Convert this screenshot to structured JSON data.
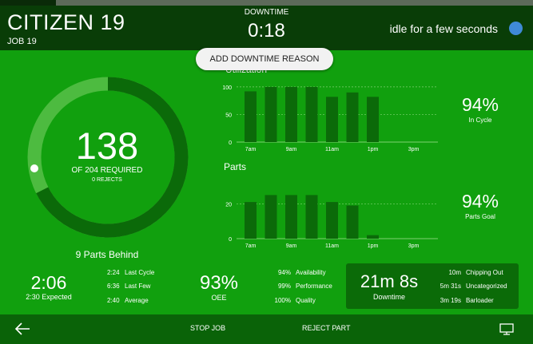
{
  "header": {
    "title": "CITIZEN 19",
    "job": "JOB 19",
    "downtime_label": "DOWNTIME",
    "downtime_value": "0:18",
    "idle_text": "idle for a few seconds",
    "status_dot_color": "#3f8ad6"
  },
  "add_downtime_button": "ADD DOWNTIME REASON",
  "progress": {
    "count": "138",
    "required": "OF 204 REQUIRED",
    "rejects": "0 REJECTS",
    "behind": "9 Parts Behind",
    "fraction": 0.676
  },
  "chart_data": [
    {
      "type": "bar",
      "title": "Utilization",
      "x_tick_labels": [
        "7am",
        "9am",
        "11am",
        "1pm",
        "3pm"
      ],
      "y_ticks": [
        "0",
        "50",
        "100"
      ],
      "ylim": [
        0,
        110
      ],
      "values": [
        92,
        100,
        100,
        100,
        82,
        90,
        82
      ],
      "grid": true
    },
    {
      "type": "bar",
      "title": "Parts",
      "x_tick_labels": [
        "7am",
        "9am",
        "11am",
        "1pm",
        "3pm"
      ],
      "y_ticks": [
        "0",
        "20"
      ],
      "ylim": [
        0,
        27
      ],
      "values": [
        21,
        25,
        25,
        25,
        21,
        19,
        2
      ],
      "grid": true
    }
  ],
  "in_cycle": {
    "value": "94%",
    "label": "In Cycle"
  },
  "parts_goal": {
    "value": "94%",
    "label": "Parts Goal"
  },
  "cycle": {
    "value": "2:06",
    "expected": "2:30 Expected",
    "rows": [
      {
        "value": "2:24",
        "label": "Last Cycle"
      },
      {
        "value": "6:36",
        "label": "Last Few"
      },
      {
        "value": "2:40",
        "label": "Average"
      }
    ]
  },
  "oee": {
    "value": "93%",
    "label": "OEE",
    "rows": [
      {
        "value": "94%",
        "label": "Availability"
      },
      {
        "value": "99%",
        "label": "Performance"
      },
      {
        "value": "100%",
        "label": "Quality"
      }
    ]
  },
  "downtime_summary": {
    "value": "21m 8s",
    "label": "Downtime",
    "rows": [
      {
        "value": "10m",
        "label": "Chipping Out"
      },
      {
        "value": "5m 31s",
        "label": "Uncategorized"
      },
      {
        "value": "3m 19s",
        "label": "Barloader"
      }
    ]
  },
  "footer": {
    "stop_job": "STOP JOB",
    "reject_part": "REJECT PART",
    "back_icon": "arrow-left-icon",
    "display_icon": "monitor-icon"
  }
}
